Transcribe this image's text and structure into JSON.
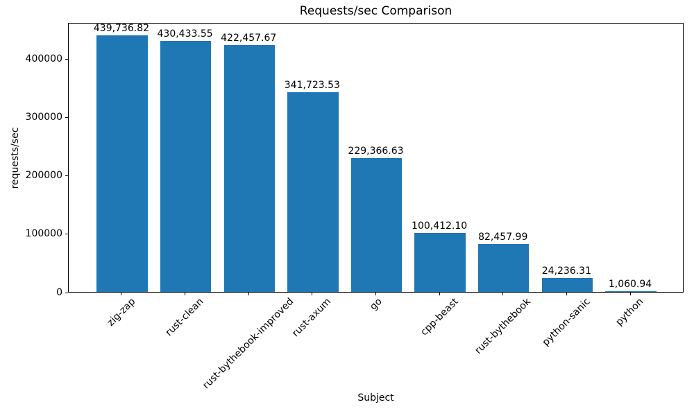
{
  "chart_data": {
    "type": "bar",
    "title": "Requests/sec Comparison",
    "xlabel": "Subject",
    "ylabel": "requests/sec",
    "categories": [
      "zig-zap",
      "rust-clean",
      "rust-bythebook-improved",
      "rust-axum",
      "go",
      "cpp-beast",
      "rust-bythebook",
      "python-sanic",
      "python"
    ],
    "values": [
      439736.82,
      430433.55,
      422457.67,
      341723.53,
      229366.63,
      100412.1,
      82457.99,
      24236.31,
      1060.94
    ],
    "value_labels": [
      "439,736.82",
      "430,433.55",
      "422,457.67",
      "341,723.53",
      "229,366.63",
      "100,412.10",
      "82,457.99",
      "24,236.31",
      "1,060.94"
    ],
    "yticks": [
      0,
      100000,
      200000,
      300000,
      400000
    ],
    "ytick_labels": [
      "0",
      "100000",
      "200000",
      "300000",
      "400000"
    ],
    "ylim": [
      0,
      462000
    ],
    "bar_color": "#1f77b4",
    "grid": false,
    "legend": "none",
    "xtick_rotation_deg": 45
  }
}
